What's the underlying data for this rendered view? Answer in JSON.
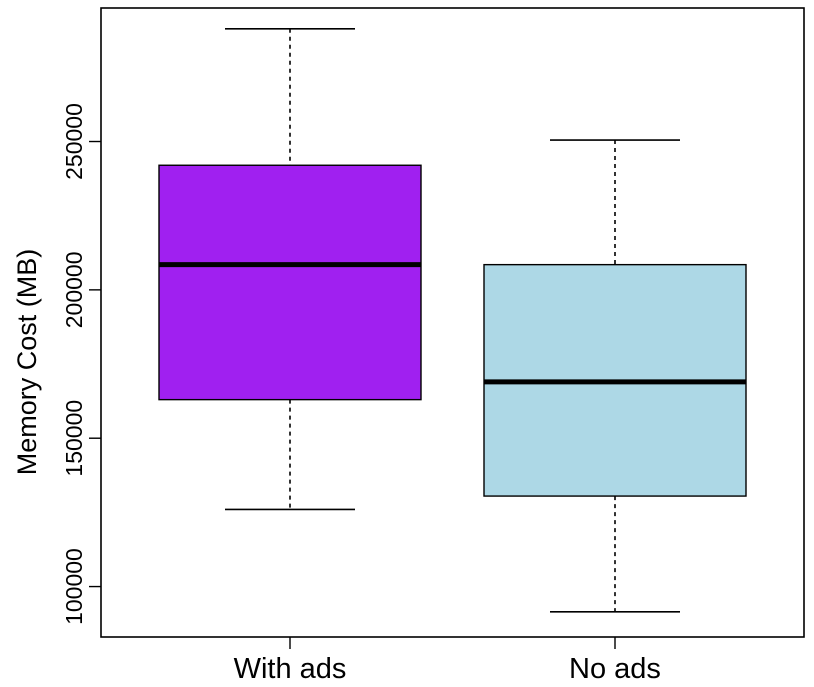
{
  "chart_data": {
    "type": "boxplot",
    "title": "",
    "xlabel": "",
    "ylabel": "Memory Cost (MB)",
    "ylim": [
      83000,
      295000
    ],
    "yticks": [
      100000,
      150000,
      200000,
      250000
    ],
    "ytick_labels": [
      "100000",
      "150000",
      "200000",
      "250000"
    ],
    "grid": false,
    "legend": "none",
    "categories": [
      "With ads",
      "No ads"
    ],
    "series": [
      {
        "category": "With ads",
        "min": 126000,
        "q1": 163000,
        "median": 208500,
        "q3": 242000,
        "max": 288000,
        "color": "#a020f0"
      },
      {
        "category": "No ads",
        "min": 91500,
        "q1": 130500,
        "median": 169000,
        "q3": 208500,
        "max": 250500,
        "color": "#add8e6"
      }
    ]
  }
}
